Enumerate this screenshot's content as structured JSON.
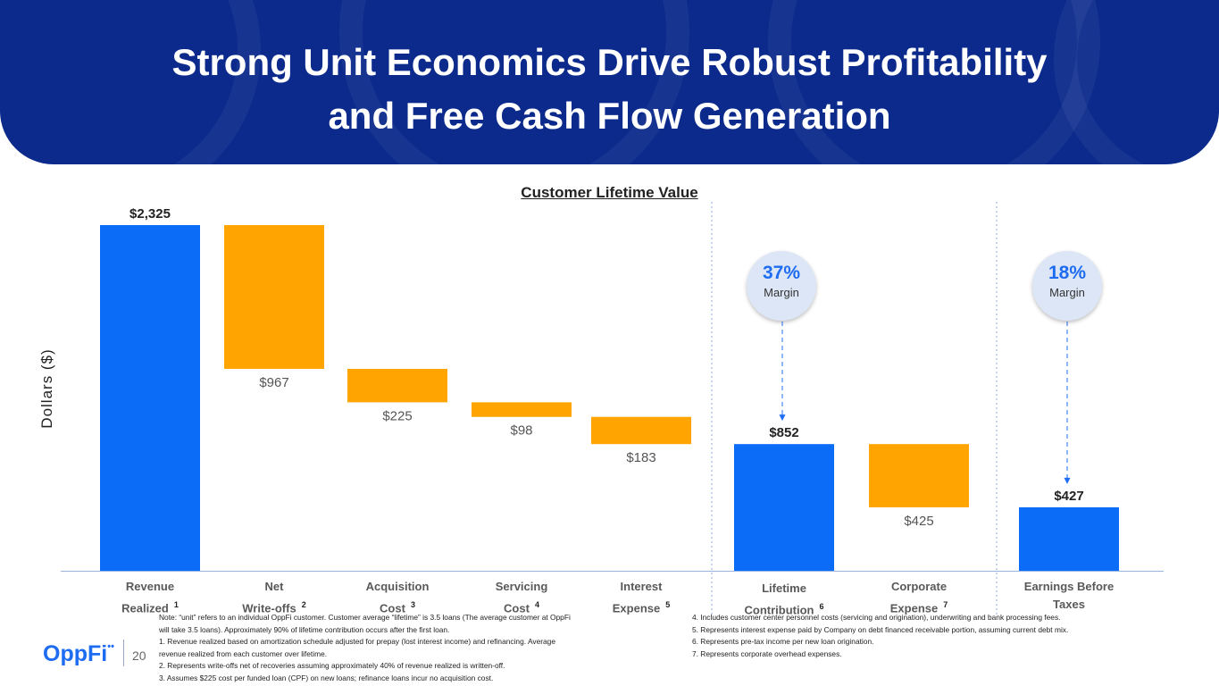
{
  "slide": {
    "title_line1": "Strong Unit Economics Drive Robust Profitability",
    "title_line2": "and Free Cash Flow Generation",
    "page_number": "20",
    "logo_text": "OppFi",
    "logo_mark": "••"
  },
  "colors": {
    "banner": "#0b2a8c",
    "positive": "#0a6cf7",
    "negative": "#ffa400",
    "accent": "#1d6cf2"
  },
  "chart_data": {
    "type": "waterfall",
    "title": "Customer Lifetime Value",
    "ylabel": "Dollars ($)",
    "ylim": [
      0,
      2325
    ],
    "bars": [
      {
        "label_line1": "Revenue",
        "label_line2": "Realized",
        "note": "1",
        "value": 2325,
        "start": 0,
        "end": 2325,
        "kind": "total",
        "value_label": "$2,325"
      },
      {
        "label_line1": "Net",
        "label_line2": "Write-offs",
        "note": "2",
        "value": -967,
        "start": 2325,
        "end": 1358,
        "kind": "decrease",
        "value_label": "$967"
      },
      {
        "label_line1": "Acquisition",
        "label_line2": "Cost",
        "note": "3",
        "value": -225,
        "start": 1358,
        "end": 1133,
        "kind": "decrease",
        "value_label": "$225"
      },
      {
        "label_line1": "Servicing",
        "label_line2": "Cost",
        "note": "4",
        "value": -98,
        "start": 1133,
        "end": 1035,
        "kind": "decrease",
        "value_label": "$98"
      },
      {
        "label_line1": "Interest",
        "label_line2": "Expense",
        "note": "5",
        "value": -183,
        "start": 1035,
        "end": 852,
        "kind": "decrease",
        "value_label": "$183"
      },
      {
        "label_line1": "Lifetime",
        "label_line2": "Contribution",
        "note": "6",
        "value": 852,
        "start": 0,
        "end": 852,
        "kind": "total",
        "value_label": "$852"
      },
      {
        "label_line1": "Corporate",
        "label_line2": "Expense",
        "note": "7",
        "value": -425,
        "start": 852,
        "end": 427,
        "kind": "decrease",
        "value_label": "$425"
      },
      {
        "label_line1": "Earnings Before",
        "label_line2": "Taxes",
        "note": "",
        "value": 427,
        "start": 0,
        "end": 427,
        "kind": "total",
        "value_label": "$427"
      }
    ],
    "annotations": [
      {
        "percent": "37%",
        "label": "Margin",
        "target_bar": 5
      },
      {
        "percent": "18%",
        "label": "Margin",
        "target_bar": 7
      }
    ]
  },
  "notes": {
    "left": [
      "Note: “unit” refers to an individual OppFi customer. Customer average “lifetime” is 3.5 loans (The average customer at OppFi",
      "will take 3.5 loans). Approximately 90% of lifetime contribution occurs after the first loan.",
      "1.   Revenue realized based on amortization schedule adjusted for prepay (lost interest income) and refinancing. Average",
      "      revenue realized from each customer over lifetime.",
      "2.   Represents write-offs net of recoveries assuming approximately 40% of revenue realized is written-off.",
      "3.   Assumes $225 cost per funded loan (CPF) on new loans; refinance loans incur no acquisition cost."
    ],
    "right": [
      "4.   Includes customer center personnel costs (servicing and origination), underwriting and bank processing fees.",
      "5.   Represents interest expense paid by Company on debt financed receivable portion, assuming current debt mix.",
      "6.   Represents pre-tax income per new loan origination.",
      "7.   Represents corporate overhead expenses."
    ]
  }
}
